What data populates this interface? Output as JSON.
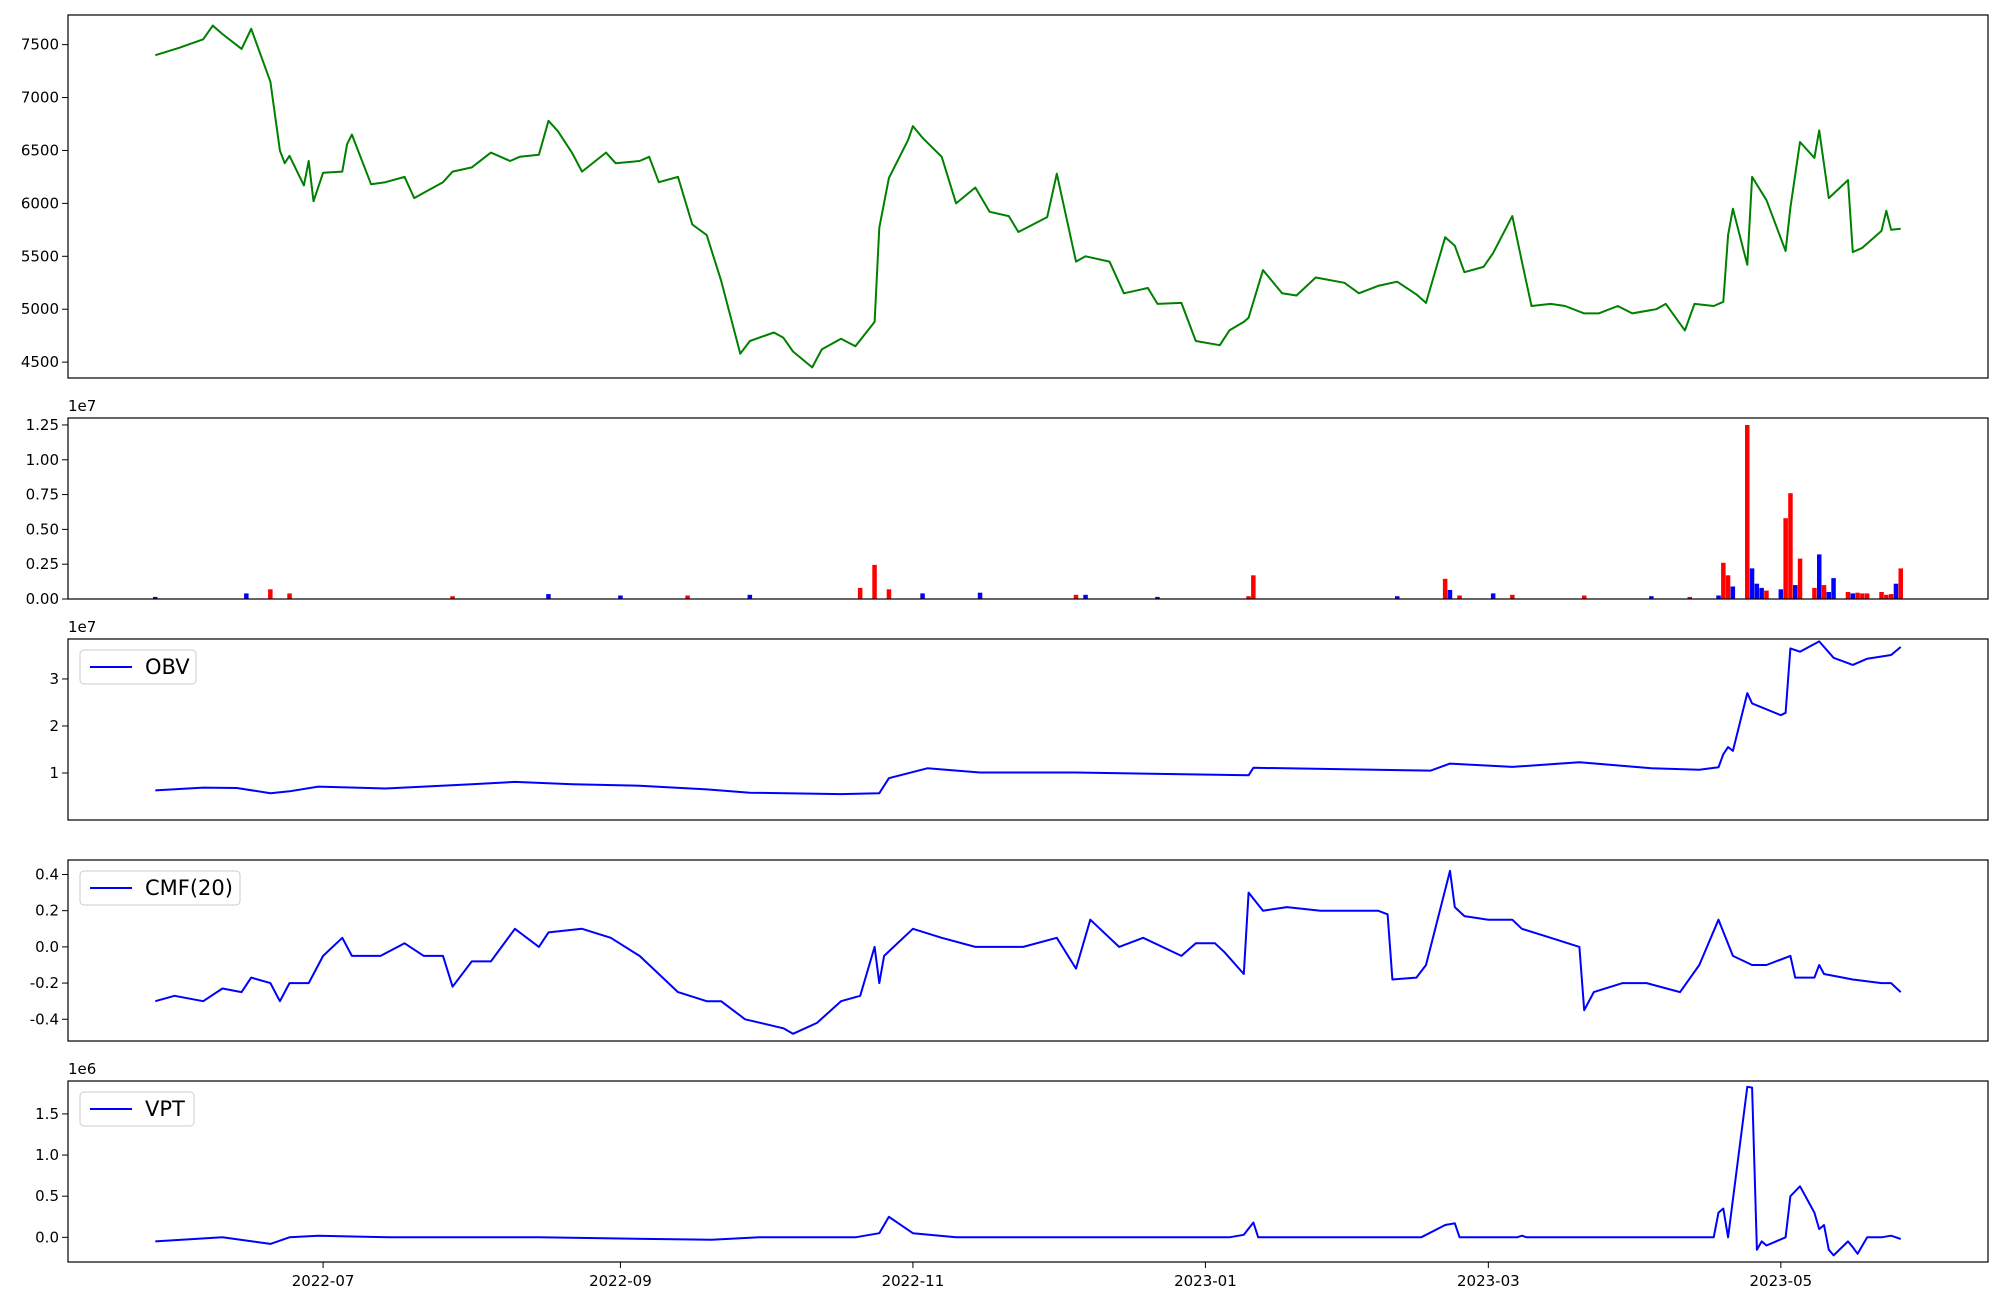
{
  "colors": {
    "price": "#008000",
    "up": "#ff0000",
    "down": "#0000ff",
    "indicator": "#0000ff",
    "axes": "#000000"
  },
  "x_axis": {
    "type": "date",
    "start": "2022-05-27",
    "end": "2023-05-26",
    "ticks": [
      "2022-07",
      "2022-09",
      "2022-11",
      "2023-01",
      "2023-03",
      "2023-05"
    ]
  },
  "chart_data": [
    {
      "type": "line",
      "name": "close",
      "ylim": [
        4350,
        7780
      ],
      "yticks": [
        "4500",
        "5000",
        "5500",
        "6000",
        "6500",
        "7000",
        "7500"
      ],
      "grid": false,
      "x": [
        "2022-05-27",
        "2022-06-01",
        "2022-06-06",
        "2022-06-08",
        "2022-06-10",
        "2022-06-14",
        "2022-06-16",
        "2022-06-20",
        "2022-06-22",
        "2022-06-23",
        "2022-06-24",
        "2022-06-27",
        "2022-06-28",
        "2022-06-29",
        "2022-07-01",
        "2022-07-05",
        "2022-07-06",
        "2022-07-07",
        "2022-07-11",
        "2022-07-14",
        "2022-07-18",
        "2022-07-20",
        "2022-07-22",
        "2022-07-26",
        "2022-07-28",
        "2022-08-01",
        "2022-08-05",
        "2022-08-09",
        "2022-08-11",
        "2022-08-15",
        "2022-08-17",
        "2022-08-19",
        "2022-08-22",
        "2022-08-24",
        "2022-08-29",
        "2022-08-31",
        "2022-09-05",
        "2022-09-07",
        "2022-09-09",
        "2022-09-13",
        "2022-09-16",
        "2022-09-19",
        "2022-09-22",
        "2022-09-26",
        "2022-09-28",
        "2022-10-03",
        "2022-10-05",
        "2022-10-07",
        "2022-10-11",
        "2022-10-13",
        "2022-10-17",
        "2022-10-20",
        "2022-10-24",
        "2022-10-25",
        "2022-10-27",
        "2022-10-31",
        "2022-11-01",
        "2022-11-03",
        "2022-11-07",
        "2022-11-10",
        "2022-11-14",
        "2022-11-17",
        "2022-11-21",
        "2022-11-23",
        "2022-11-29",
        "2022-12-01",
        "2022-12-05",
        "2022-12-07",
        "2022-12-12",
        "2022-12-15",
        "2022-12-20",
        "2022-12-22",
        "2022-12-27",
        "2022-12-30",
        "2023-01-04",
        "2023-01-06",
        "2023-01-09",
        "2023-01-10",
        "2023-01-13",
        "2023-01-17",
        "2023-01-20",
        "2023-01-24",
        "2023-01-30",
        "2023-02-02",
        "2023-02-06",
        "2023-02-10",
        "2023-02-14",
        "2023-02-16",
        "2023-02-20",
        "2023-02-22",
        "2023-02-24",
        "2023-02-28",
        "2023-03-02",
        "2023-03-06",
        "2023-03-08",
        "2023-03-10",
        "2023-03-14",
        "2023-03-17",
        "2023-03-21",
        "2023-03-24",
        "2023-03-28",
        "2023-03-31",
        "2023-04-05",
        "2023-04-07",
        "2023-04-11",
        "2023-04-13",
        "2023-04-17",
        "2023-04-19",
        "2023-04-20",
        "2023-04-21",
        "2023-04-24",
        "2023-04-25",
        "2023-04-28",
        "2023-05-02",
        "2023-05-03",
        "2023-05-05",
        "2023-05-08",
        "2023-05-09",
        "2023-05-11",
        "2023-05-15",
        "2023-05-16",
        "2023-05-18",
        "2023-05-22",
        "2023-05-23",
        "2023-05-24",
        "2023-05-26"
      ],
      "values": [
        7400,
        7470,
        7550,
        7680,
        7600,
        7460,
        7650,
        7150,
        6500,
        6380,
        6450,
        6170,
        6400,
        6020,
        6290,
        6300,
        6560,
        6650,
        6180,
        6200,
        6250,
        6050,
        6100,
        6200,
        6300,
        6340,
        6480,
        6400,
        6440,
        6460,
        6780,
        6680,
        6470,
        6300,
        6480,
        6380,
        6400,
        6440,
        6200,
        6250,
        5800,
        5700,
        5270,
        4580,
        4700,
        4780,
        4730,
        4600,
        4450,
        4620,
        4720,
        4650,
        4880,
        5770,
        6240,
        6600,
        6730,
        6620,
        6440,
        6000,
        6150,
        5920,
        5880,
        5730,
        5870,
        6280,
        5450,
        5500,
        5450,
        5150,
        5200,
        5050,
        5060,
        4700,
        4660,
        4800,
        4880,
        4920,
        5370,
        5150,
        5130,
        5300,
        5250,
        5150,
        5220,
        5260,
        5140,
        5060,
        5680,
        5600,
        5350,
        5400,
        5530,
        5880,
        5450,
        5030,
        5050,
        5030,
        4960,
        4960,
        5030,
        4960,
        5000,
        5050,
        4800,
        5050,
        5030,
        5070,
        5700,
        5950,
        5420,
        6250,
        6030,
        5550,
        5960,
        6580,
        6430,
        6690,
        6050,
        6220,
        5540,
        5580,
        5740,
        5930,
        5750,
        5760
      ]
    },
    {
      "type": "bar",
      "name": "volume",
      "exponent_label": "1e7",
      "ylim": [
        0,
        13000000
      ],
      "yticks": [
        "0.00",
        "0.25",
        "0.50",
        "0.75",
        "1.00",
        "1.25"
      ],
      "x": [
        "2022-05-27",
        "2022-06-15",
        "2022-06-20",
        "2022-06-24",
        "2022-07-28",
        "2022-08-17",
        "2022-09-01",
        "2022-09-15",
        "2022-09-28",
        "2022-10-21",
        "2022-10-24",
        "2022-10-27",
        "2022-11-03",
        "2022-11-15",
        "2022-12-05",
        "2022-12-07",
        "2022-12-22",
        "2023-01-10",
        "2023-01-11",
        "2023-02-10",
        "2023-02-20",
        "2023-02-21",
        "2023-02-23",
        "2023-03-02",
        "2023-03-06",
        "2023-03-21",
        "2023-04-04",
        "2023-04-12",
        "2023-04-18",
        "2023-04-19",
        "2023-04-20",
        "2023-04-21",
        "2023-04-24",
        "2023-04-25",
        "2023-04-26",
        "2023-04-27",
        "2023-04-28",
        "2023-05-01",
        "2023-05-02",
        "2023-05-03",
        "2023-05-04",
        "2023-05-05",
        "2023-05-08",
        "2023-05-09",
        "2023-05-10",
        "2023-05-11",
        "2023-05-12",
        "2023-05-15",
        "2023-05-16",
        "2023-05-17",
        "2023-05-18",
        "2023-05-19",
        "2023-05-22",
        "2023-05-23",
        "2023-05-24",
        "2023-05-25",
        "2023-05-26"
      ],
      "values": [
        150000,
        400000,
        700000,
        400000,
        200000,
        350000,
        250000,
        250000,
        300000,
        800000,
        2450000,
        700000,
        400000,
        450000,
        300000,
        300000,
        150000,
        200000,
        1700000,
        200000,
        1450000,
        650000,
        250000,
        400000,
        300000,
        250000,
        200000,
        150000,
        250000,
        2600000,
        1700000,
        900000,
        12500000,
        2200000,
        1100000,
        800000,
        600000,
        700000,
        5800000,
        7600000,
        1000000,
        2900000,
        800000,
        3200000,
        1000000,
        500000,
        1500000,
        500000,
        400000,
        450000,
        400000,
        400000,
        500000,
        300000,
        350000,
        1100000,
        2200000
      ],
      "directions": [
        "down",
        "down",
        "up",
        "up",
        "up",
        "down",
        "down",
        "up",
        "down",
        "up",
        "up",
        "up",
        "down",
        "down",
        "up",
        "down",
        "down",
        "up",
        "up",
        "down",
        "up",
        "down",
        "up",
        "down",
        "up",
        "up",
        "down",
        "up",
        "down",
        "up",
        "up",
        "down",
        "up",
        "down",
        "down",
        "down",
        "up",
        "down",
        "up",
        "up",
        "down",
        "up",
        "up",
        "down",
        "up",
        "down",
        "down",
        "up",
        "down",
        "up",
        "up",
        "up",
        "up",
        "up",
        "up",
        "down",
        "up"
      ]
    },
    {
      "type": "line",
      "name": "OBV",
      "exponent_label": "1e7",
      "legend": "OBV",
      "legend_position": "upper-left",
      "ylim": [
        0,
        38500000
      ],
      "yticks": [
        "1",
        "2",
        "3"
      ],
      "x": [
        "2022-05-27",
        "2022-06-06",
        "2022-06-13",
        "2022-06-20",
        "2022-06-24",
        "2022-06-30",
        "2022-07-14",
        "2022-07-22",
        "2022-08-01",
        "2022-08-10",
        "2022-08-22",
        "2022-09-05",
        "2022-09-19",
        "2022-09-28",
        "2022-10-17",
        "2022-10-25",
        "2022-10-27",
        "2022-11-04",
        "2022-11-15",
        "2022-12-05",
        "2023-01-10",
        "2023-01-11",
        "2023-02-17",
        "2023-02-21",
        "2023-03-06",
        "2023-03-20",
        "2023-04-04",
        "2023-04-14",
        "2023-04-18",
        "2023-04-19",
        "2023-04-20",
        "2023-04-21",
        "2023-04-24",
        "2023-04-25",
        "2023-05-01",
        "2023-05-02",
        "2023-05-03",
        "2023-05-05",
        "2023-05-09",
        "2023-05-12",
        "2023-05-16",
        "2023-05-19",
        "2023-05-24",
        "2023-05-26"
      ],
      "values": [
        6300000,
        6900000,
        6800000,
        5700000,
        6100000,
        7100000,
        6700000,
        7100000,
        7600000,
        8100000,
        7600000,
        7300000,
        6500000,
        5800000,
        5500000,
        5700000,
        8900000,
        11000000,
        10100000,
        10100000,
        9500000,
        11100000,
        10500000,
        12000000,
        11300000,
        12300000,
        11000000,
        10700000,
        11200000,
        14000000,
        15500000,
        14700000,
        27000000,
        24800000,
        22300000,
        22800000,
        36500000,
        35800000,
        38000000,
        34500000,
        33000000,
        34300000,
        35100000,
        36800000
      ]
    },
    {
      "type": "line",
      "name": "CMF(20)",
      "legend": "CMF(20)",
      "legend_position": "upper-left",
      "ylim": [
        -0.52,
        0.48
      ],
      "yticks": [
        "-0.4",
        "-0.2",
        "0.0",
        "0.2",
        "0.4"
      ],
      "x": [
        "2022-05-27",
        "2022-05-31",
        "2022-06-06",
        "2022-06-10",
        "2022-06-14",
        "2022-06-16",
        "2022-06-20",
        "2022-06-22",
        "2022-06-24",
        "2022-06-28",
        "2022-06-30",
        "2022-07-01",
        "2022-07-05",
        "2022-07-07",
        "2022-07-13",
        "2022-07-18",
        "2022-07-22",
        "2022-07-26",
        "2022-07-28",
        "2022-08-01",
        "2022-08-05",
        "2022-08-10",
        "2022-08-15",
        "2022-08-17",
        "2022-08-24",
        "2022-08-30",
        "2022-09-05",
        "2022-09-13",
        "2022-09-19",
        "2022-09-22",
        "2022-09-27",
        "2022-10-05",
        "2022-10-07",
        "2022-10-12",
        "2022-10-17",
        "2022-10-21",
        "2022-10-24",
        "2022-10-25",
        "2022-10-26",
        "2022-11-01",
        "2022-11-07",
        "2022-11-14",
        "2022-11-24",
        "2022-12-01",
        "2022-12-05",
        "2022-12-08",
        "2022-12-14",
        "2022-12-19",
        "2022-12-27",
        "2022-12-30",
        "2023-01-03",
        "2023-01-05",
        "2023-01-09",
        "2023-01-10",
        "2023-01-13",
        "2023-01-18",
        "2023-01-25",
        "2023-02-01",
        "2023-02-06",
        "2023-02-08",
        "2023-02-09",
        "2023-02-14",
        "2023-02-16",
        "2023-02-21",
        "2023-02-22",
        "2023-02-24",
        "2023-03-01",
        "2023-03-06",
        "2023-03-08",
        "2023-03-14",
        "2023-03-20",
        "2023-03-21",
        "2023-03-23",
        "2023-03-29",
        "2023-04-03",
        "2023-04-10",
        "2023-04-14",
        "2023-04-18",
        "2023-04-21",
        "2023-04-25",
        "2023-04-28",
        "2023-05-03",
        "2023-05-04",
        "2023-05-08",
        "2023-05-09",
        "2023-05-10",
        "2023-05-16",
        "2023-05-22",
        "2023-05-24",
        "2023-05-26"
      ],
      "values": [
        -0.3,
        -0.27,
        -0.3,
        -0.23,
        -0.25,
        -0.17,
        -0.2,
        -0.3,
        -0.2,
        -0.2,
        -0.1,
        -0.05,
        0.05,
        -0.05,
        -0.05,
        0.02,
        -0.05,
        -0.05,
        -0.22,
        -0.08,
        -0.08,
        0.1,
        0.0,
        0.08,
        0.1,
        0.05,
        -0.05,
        -0.25,
        -0.3,
        -0.3,
        -0.4,
        -0.45,
        -0.48,
        -0.42,
        -0.3,
        -0.27,
        0.0,
        -0.2,
        -0.05,
        0.1,
        0.05,
        0.0,
        0.0,
        0.05,
        -0.12,
        0.15,
        0.0,
        0.05,
        -0.05,
        0.02,
        0.02,
        -0.03,
        -0.15,
        0.3,
        0.2,
        0.22,
        0.2,
        0.2,
        0.2,
        0.18,
        -0.18,
        -0.17,
        -0.1,
        0.42,
        0.22,
        0.17,
        0.15,
        0.15,
        0.1,
        0.05,
        0.0,
        -0.35,
        -0.25,
        -0.2,
        -0.2,
        -0.25,
        -0.1,
        0.15,
        -0.05,
        -0.1,
        -0.1,
        -0.05,
        -0.17,
        -0.17,
        -0.1,
        -0.15,
        -0.18,
        -0.2,
        -0.2,
        -0.25
      ]
    },
    {
      "type": "line",
      "name": "VPT",
      "exponent_label": "1e6",
      "legend": "VPT",
      "legend_position": "upper-left",
      "ylim": [
        -300000,
        1900000
      ],
      "yticks": [
        "0.0",
        "0.5",
        "1.0",
        "1.5"
      ],
      "x": [
        "2022-05-27",
        "2022-06-10",
        "2022-06-20",
        "2022-06-24",
        "2022-06-30",
        "2022-07-15",
        "2022-08-15",
        "2022-09-20",
        "2022-09-30",
        "2022-10-20",
        "2022-10-25",
        "2022-10-27",
        "2022-11-01",
        "2022-11-10",
        "2022-12-01",
        "2022-12-10",
        "2023-01-06",
        "2023-01-09",
        "2023-01-11",
        "2023-01-12",
        "2023-02-15",
        "2023-02-20",
        "2023-02-22",
        "2023-02-23",
        "2023-03-07",
        "2023-03-08",
        "2023-03-09",
        "2023-04-10",
        "2023-04-17",
        "2023-04-18",
        "2023-04-19",
        "2023-04-20",
        "2023-04-24",
        "2023-04-25",
        "2023-04-26",
        "2023-04-27",
        "2023-04-28",
        "2023-05-02",
        "2023-05-03",
        "2023-05-05",
        "2023-05-08",
        "2023-05-09",
        "2023-05-10",
        "2023-05-11",
        "2023-05-12",
        "2023-05-15",
        "2023-05-16",
        "2023-05-17",
        "2023-05-19",
        "2023-05-22",
        "2023-05-24",
        "2023-05-25",
        "2023-05-26"
      ],
      "values": [
        -50000,
        0,
        -80000,
        0,
        20000,
        0,
        0,
        -30000,
        0,
        0,
        50000,
        250000,
        50000,
        0,
        0,
        0,
        0,
        30000,
        180000,
        0,
        0,
        150000,
        170000,
        0,
        0,
        20000,
        0,
        0,
        0,
        300000,
        350000,
        0,
        1830000,
        1820000,
        -150000,
        -50000,
        -100000,
        0,
        500000,
        620000,
        300000,
        100000,
        150000,
        -150000,
        -220000,
        -50000,
        -120000,
        -200000,
        0,
        0,
        20000,
        0,
        -20000
      ]
    }
  ]
}
